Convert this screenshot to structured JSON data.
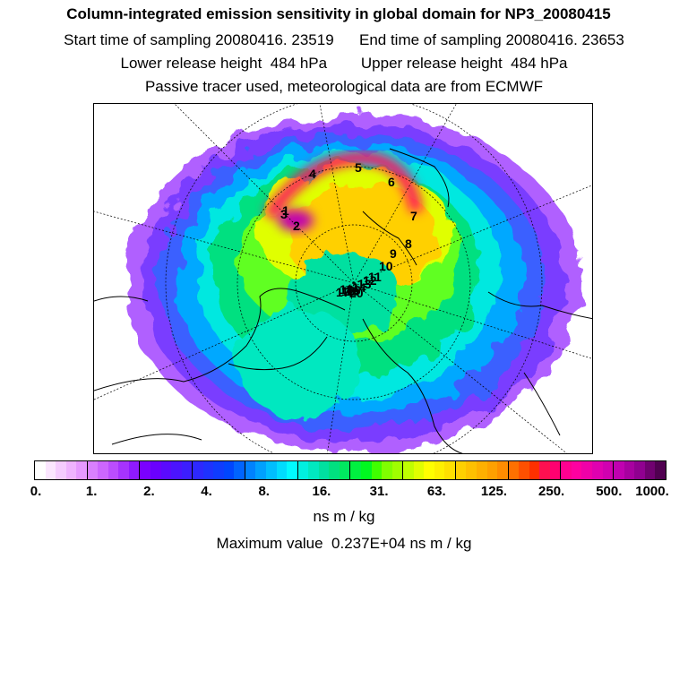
{
  "header": {
    "title": "Column-integrated emission sensitivity in global domain for NP3_20080415",
    "sampling": "Start time of sampling 20080416. 23519      End time of sampling 20080416. 23653",
    "release": "Lower release height  484 hPa        Upper release height  484 hPa",
    "tracer": "Passive tracer used, meteorological data are from ECMWF"
  },
  "colorbar": {
    "tick_labels": [
      "0.",
      "1.",
      "2.",
      "4.",
      "8.",
      "16.",
      "31.",
      "63.",
      "125.",
      "250.",
      "500.",
      "1000."
    ],
    "colors": [
      "#ffffff",
      "#fbe6ff",
      "#f5ccff",
      "#efb3ff",
      "#e699ff",
      "#d980ff",
      "#cc66ff",
      "#bb4dff",
      "#a633ff",
      "#8f1aff",
      "#7a00ff",
      "#6a00ff",
      "#5a0aff",
      "#4b14ff",
      "#3c1eff",
      "#2d28ff",
      "#1e32ff",
      "#0f3cff",
      "#0046ff",
      "#0064ff",
      "#0082ff",
      "#00a0ff",
      "#00beff",
      "#00dcff",
      "#00faff",
      "#00f0e0",
      "#00e8c0",
      "#00e0a0",
      "#00e080",
      "#00e860",
      "#00f040",
      "#00f820",
      "#40ff00",
      "#80ff00",
      "#a0ff00",
      "#c0ff00",
      "#e0ff00",
      "#ffff00",
      "#fff000",
      "#ffe000",
      "#ffd000",
      "#ffc000",
      "#ffb000",
      "#ffa000",
      "#ff8c00",
      "#ff7000",
      "#ff5000",
      "#ff3000",
      "#ff1050",
      "#ff0070",
      "#ff0090",
      "#ff00a0",
      "#f000a8",
      "#e000b0",
      "#d000b0",
      "#c000b0",
      "#a800a0",
      "#900090",
      "#700070",
      "#500050"
    ],
    "units": "ns m / kg",
    "max_value": "Maximum value  0.237E+04 ns m / kg"
  },
  "map_labels": [
    "1",
    "2",
    "3",
    "4",
    "5",
    "6",
    "7",
    "8",
    "9",
    "10",
    "11",
    "12",
    "13",
    "14",
    "15",
    "16",
    "17",
    "18",
    "19",
    "20"
  ],
  "colors": {
    "background": "#ffffff",
    "outer_band": "#a040ff",
    "mid_band": "#00a0ff",
    "inner": "#00e080",
    "core": "#ffd000",
    "max": "#ff0080"
  }
}
